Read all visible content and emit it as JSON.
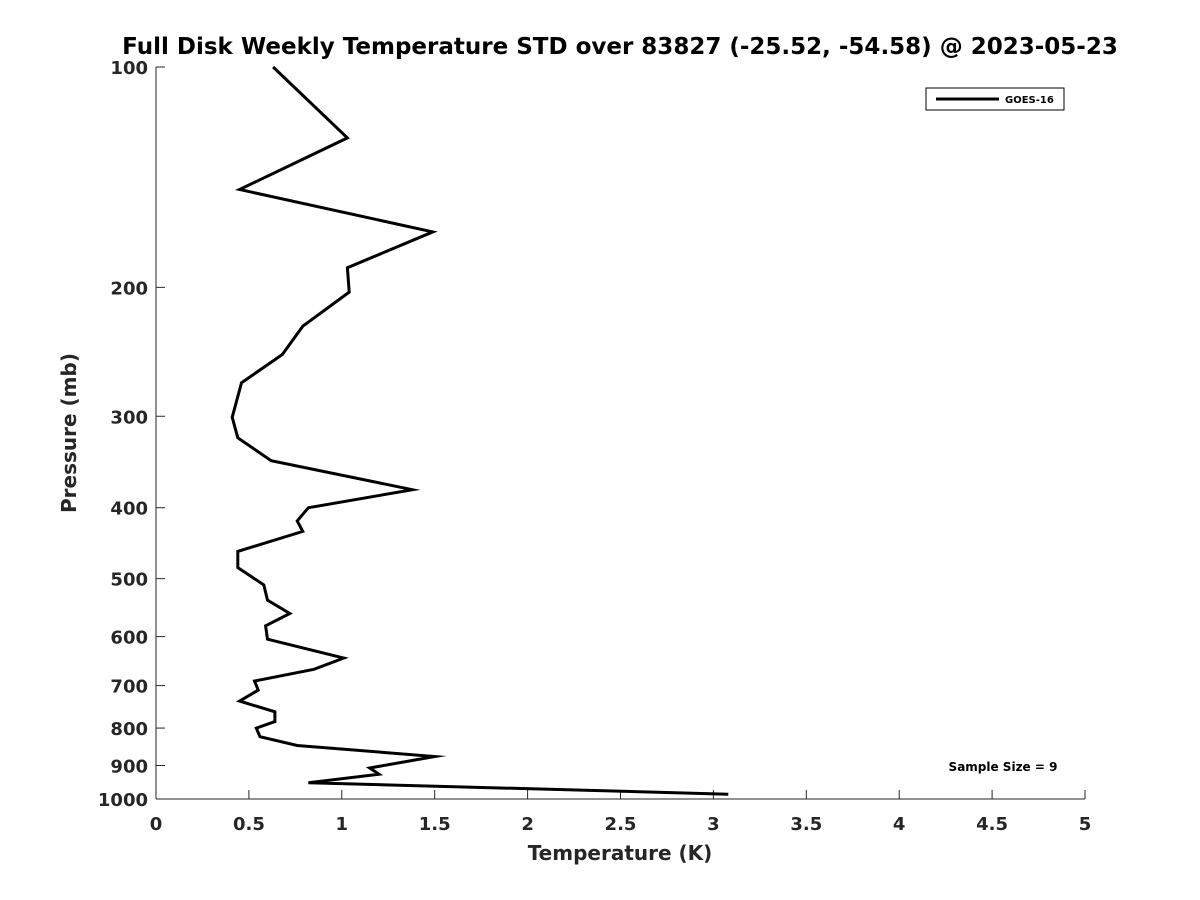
{
  "chart_data": {
    "type": "line",
    "title": "Full Disk Weekly Temperature STD over 83827 (-25.52, -54.58) @ 2023-05-23",
    "xlabel": "Temperature (K)",
    "ylabel": "Pressure (mb)",
    "xlim": [
      0,
      5
    ],
    "ylim": [
      100,
      1000
    ],
    "yscale": "log",
    "y_reversed": true,
    "xticks": [
      0,
      0.5,
      1,
      1.5,
      2,
      2.5,
      3,
      3.5,
      4,
      4.5,
      5
    ],
    "xtick_labels": [
      "0",
      "0.5",
      "1",
      "1.5",
      "2",
      "2.5",
      "3",
      "3.5",
      "4",
      "4.5",
      "5"
    ],
    "yticks": [
      100,
      200,
      300,
      400,
      500,
      600,
      700,
      800,
      900,
      1000
    ],
    "ytick_labels": [
      "100",
      "200",
      "300",
      "400",
      "500",
      "600",
      "700",
      "800",
      "900",
      "1000"
    ],
    "grid": false,
    "legend_position": "top-right",
    "annotation": "Sample Size = 9",
    "series": [
      {
        "name": "GOES-16",
        "color": "#000000",
        "x": [
          0.63,
          1.03,
          0.45,
          1.49,
          1.03,
          1.04,
          0.79,
          0.68,
          0.46,
          0.41,
          0.44,
          0.62,
          1.38,
          0.82,
          0.76,
          0.79,
          0.44,
          0.44,
          0.58,
          0.6,
          0.72,
          0.59,
          0.6,
          1.01,
          0.85,
          0.53,
          0.55,
          0.45,
          0.64,
          0.64,
          0.54,
          0.56,
          0.76,
          1.5,
          1.15,
          1.2,
          0.82,
          3.08
        ],
        "y": [
          100,
          125,
          147,
          168,
          188,
          203,
          226,
          247,
          270,
          301,
          321,
          345,
          378,
          400,
          417,
          431,
          459,
          483,
          510,
          535,
          558,
          580,
          605,
          642,
          665,
          690,
          710,
          735,
          760,
          784,
          800,
          822,
          845,
          875,
          907,
          925,
          950,
          985
        ]
      }
    ]
  }
}
